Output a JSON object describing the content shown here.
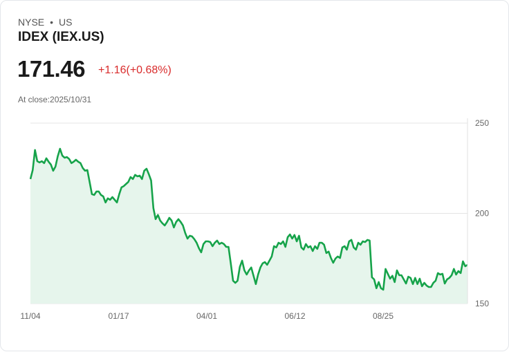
{
  "header": {
    "exchange": "NYSE",
    "separator": "•",
    "region": "US",
    "title": "IDEX (IEX.US)",
    "price": "171.46",
    "change": "+1.16(+0.68%)",
    "close_label": "At close:2025/10/31"
  },
  "colors": {
    "line": "#16a34a",
    "fill": "#e6f5ec",
    "negative": "#d92b2b"
  },
  "chart_data": {
    "type": "area",
    "title": "IDEX (IEX.US)",
    "xlabel": "",
    "ylabel": "",
    "ylim": [
      150,
      250
    ],
    "y_ticks": [
      "250",
      "200",
      "150"
    ],
    "x_ticks": [
      "11/04",
      "01/17",
      "04/01",
      "06/12",
      "08/25"
    ],
    "grid": true,
    "values": [
      219.0,
      224.0,
      235.1,
      228.9,
      228.2,
      228.9,
      227.8,
      230.5,
      228.6,
      227.0,
      223.6,
      225.9,
      231.6,
      235.8,
      232.0,
      230.8,
      231.2,
      230.1,
      227.8,
      228.6,
      229.7,
      228.6,
      227.8,
      225.1,
      223.6,
      224.0,
      217.4,
      210.6,
      210.2,
      212.1,
      212.1,
      210.2,
      209.4,
      206.0,
      208.3,
      207.5,
      209.0,
      207.5,
      206.0,
      210.6,
      214.4,
      215.1,
      216.3,
      217.4,
      220.1,
      219.0,
      221.3,
      220.5,
      220.9,
      219.0,
      223.6,
      224.7,
      221.7,
      218.2,
      202.9,
      196.8,
      199.1,
      196.0,
      194.5,
      193.3,
      195.2,
      197.5,
      196.0,
      192.2,
      195.2,
      196.8,
      195.2,
      193.3,
      189.1,
      186.0,
      187.6,
      187.2,
      185.7,
      183.7,
      180.7,
      178.4,
      183.0,
      184.5,
      184.5,
      184.1,
      181.8,
      183.7,
      184.9,
      183.0,
      183.7,
      183.0,
      181.4,
      181.4,
      172.3,
      162.7,
      161.5,
      162.7,
      170.3,
      173.8,
      168.4,
      166.1,
      168.4,
      170.0,
      165.4,
      160.8,
      166.1,
      170.0,
      172.3,
      173.0,
      171.5,
      173.8,
      176.1,
      181.8,
      181.1,
      183.7,
      183.0,
      184.5,
      181.4,
      186.8,
      188.3,
      186.0,
      188.0,
      184.5,
      187.6,
      181.1,
      179.9,
      183.0,
      181.1,
      181.8,
      179.1,
      181.8,
      180.3,
      183.7,
      183.7,
      182.6,
      178.0,
      178.8,
      175.3,
      172.6,
      175.0,
      176.1,
      175.3,
      181.1,
      181.8,
      179.9,
      184.5,
      185.3,
      181.1,
      179.9,
      183.7,
      182.6,
      184.5,
      184.1,
      185.3,
      184.9,
      164.6,
      163.4,
      158.5,
      161.9,
      158.5,
      157.7,
      169.2,
      166.5,
      163.8,
      165.4,
      161.9,
      168.4,
      165.7,
      165.7,
      163.4,
      161.1,
      164.9,
      164.2,
      160.8,
      164.2,
      160.8,
      163.8,
      159.6,
      161.5,
      160.0,
      159.2,
      159.2,
      161.5,
      162.7,
      166.9,
      166.1,
      166.5,
      161.1,
      163.4,
      164.2,
      165.7,
      169.2,
      166.1,
      168.0,
      166.9,
      173.4,
      170.7,
      171.46
    ]
  }
}
